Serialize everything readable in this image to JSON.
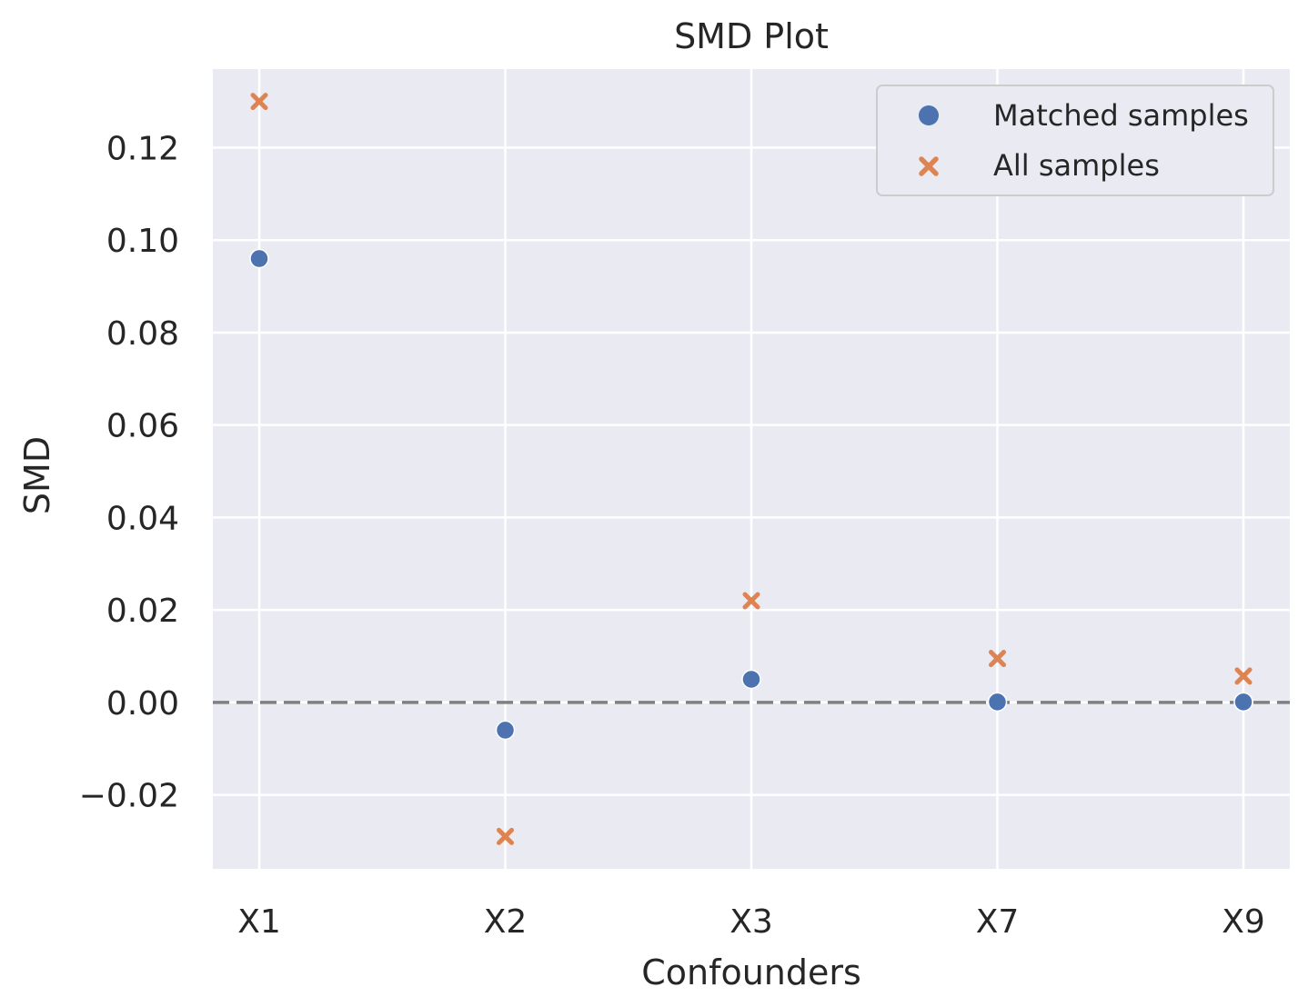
{
  "chart_data": {
    "type": "scatter",
    "title": "SMD Plot",
    "xlabel": "Confounders",
    "ylabel": "SMD",
    "categories": [
      "X1",
      "X2",
      "X3",
      "X7",
      "X9"
    ],
    "ylim": [
      -0.036,
      0.137
    ],
    "yticks": [
      -0.02,
      0.0,
      0.02,
      0.04,
      0.06,
      0.08,
      0.1,
      0.12
    ],
    "ytick_labels": [
      "−0.02",
      "0.00",
      "0.02",
      "0.04",
      "0.06",
      "0.08",
      "0.10",
      "0.12"
    ],
    "reference_line": {
      "y": 0,
      "style": "dashed",
      "color": "#808080"
    },
    "grid": true,
    "legend_position": "top-right",
    "series": [
      {
        "name": "Matched samples",
        "marker": "circle",
        "color": "#4c72b0",
        "values": [
          0.096,
          -0.006,
          0.005,
          0.0001,
          0.0001
        ]
      },
      {
        "name": "All samples",
        "marker": "x",
        "color": "#dd8452",
        "values": [
          0.13,
          -0.029,
          0.022,
          0.0095,
          0.0057
        ]
      }
    ],
    "colors": {
      "background": "#eaeaf2",
      "grid": "#ffffff"
    }
  }
}
